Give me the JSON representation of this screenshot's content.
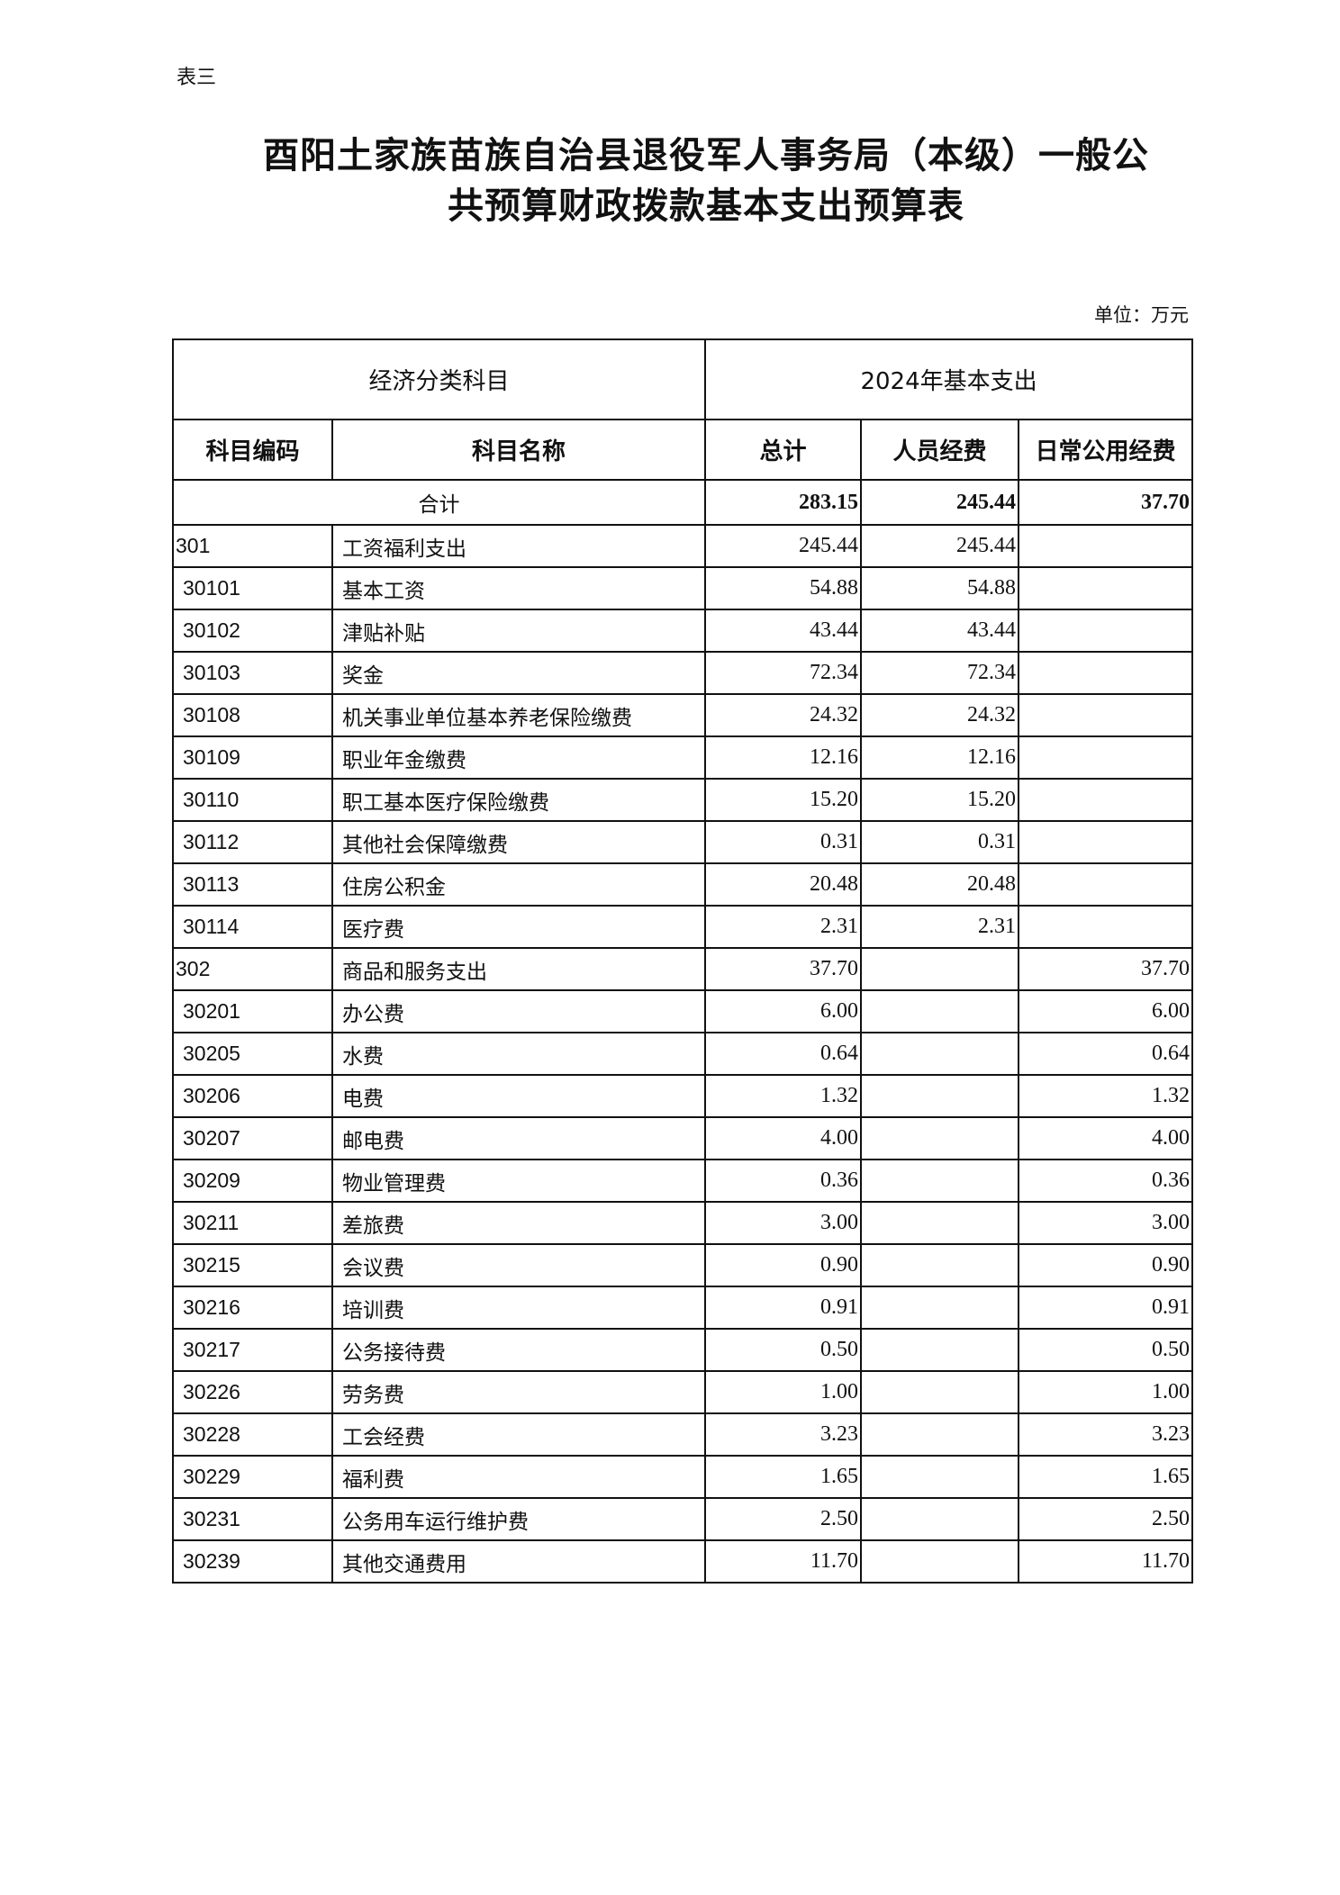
{
  "label": "表三",
  "title_line1": "酉阳土家族苗族自治县退役军人事务局（本级）一般公",
  "title_line2": "共预算财政拨款基本支出预算表",
  "unit": "单位：万元",
  "header": {
    "group_left": "经济分类科目",
    "group_right": "2024年基本支出",
    "code": "科目编码",
    "name": "科目名称",
    "total": "总计",
    "personnel": "人员经费",
    "public": "日常公用经费"
  },
  "total_row": {
    "label": "合计",
    "total": "283.15",
    "personnel": "245.44",
    "public": "37.70"
  },
  "rows": [
    {
      "code": "301",
      "name": "工资福利支出",
      "total": "245.44",
      "personnel": "245.44",
      "public": ""
    },
    {
      "code": "30101",
      "name": "基本工资",
      "total": "54.88",
      "personnel": "54.88",
      "public": ""
    },
    {
      "code": "30102",
      "name": "津贴补贴",
      "total": "43.44",
      "personnel": "43.44",
      "public": ""
    },
    {
      "code": "30103",
      "name": "奖金",
      "total": "72.34",
      "personnel": "72.34",
      "public": ""
    },
    {
      "code": "30108",
      "name": "机关事业单位基本养老保险缴费",
      "total": "24.32",
      "personnel": "24.32",
      "public": ""
    },
    {
      "code": "30109",
      "name": "职业年金缴费",
      "total": "12.16",
      "personnel": "12.16",
      "public": ""
    },
    {
      "code": "30110",
      "name": "职工基本医疗保险缴费",
      "total": "15.20",
      "personnel": "15.20",
      "public": ""
    },
    {
      "code": "30112",
      "name": "其他社会保障缴费",
      "total": "0.31",
      "personnel": "0.31",
      "public": ""
    },
    {
      "code": "30113",
      "name": "住房公积金",
      "total": "20.48",
      "personnel": "20.48",
      "public": ""
    },
    {
      "code": "30114",
      "name": "医疗费",
      "total": "2.31",
      "personnel": "2.31",
      "public": ""
    },
    {
      "code": "302",
      "name": "商品和服务支出",
      "total": "37.70",
      "personnel": "",
      "public": "37.70"
    },
    {
      "code": "30201",
      "name": "办公费",
      "total": "6.00",
      "personnel": "",
      "public": "6.00"
    },
    {
      "code": "30205",
      "name": "水费",
      "total": "0.64",
      "personnel": "",
      "public": "0.64"
    },
    {
      "code": "30206",
      "name": "电费",
      "total": "1.32",
      "personnel": "",
      "public": "1.32"
    },
    {
      "code": "30207",
      "name": "邮电费",
      "total": "4.00",
      "personnel": "",
      "public": "4.00"
    },
    {
      "code": "30209",
      "name": "物业管理费",
      "total": "0.36",
      "personnel": "",
      "public": "0.36"
    },
    {
      "code": "30211",
      "name": "差旅费",
      "total": "3.00",
      "personnel": "",
      "public": "3.00"
    },
    {
      "code": "30215",
      "name": "会议费",
      "total": "0.90",
      "personnel": "",
      "public": "0.90"
    },
    {
      "code": "30216",
      "name": "培训费",
      "total": "0.91",
      "personnel": "",
      "public": "0.91"
    },
    {
      "code": "30217",
      "name": "公务接待费",
      "total": "0.50",
      "personnel": "",
      "public": "0.50"
    },
    {
      "code": "30226",
      "name": "劳务费",
      "total": "1.00",
      "personnel": "",
      "public": "1.00"
    },
    {
      "code": "30228",
      "name": "工会经费",
      "total": "3.23",
      "personnel": "",
      "public": "3.23"
    },
    {
      "code": "30229",
      "name": "福利费",
      "total": "1.65",
      "personnel": "",
      "public": "1.65"
    },
    {
      "code": "30231",
      "name": "公务用车运行维护费",
      "total": "2.50",
      "personnel": "",
      "public": "2.50"
    },
    {
      "code": "30239",
      "name": "其他交通费用",
      "total": "11.70",
      "personnel": "",
      "public": "11.70"
    }
  ]
}
